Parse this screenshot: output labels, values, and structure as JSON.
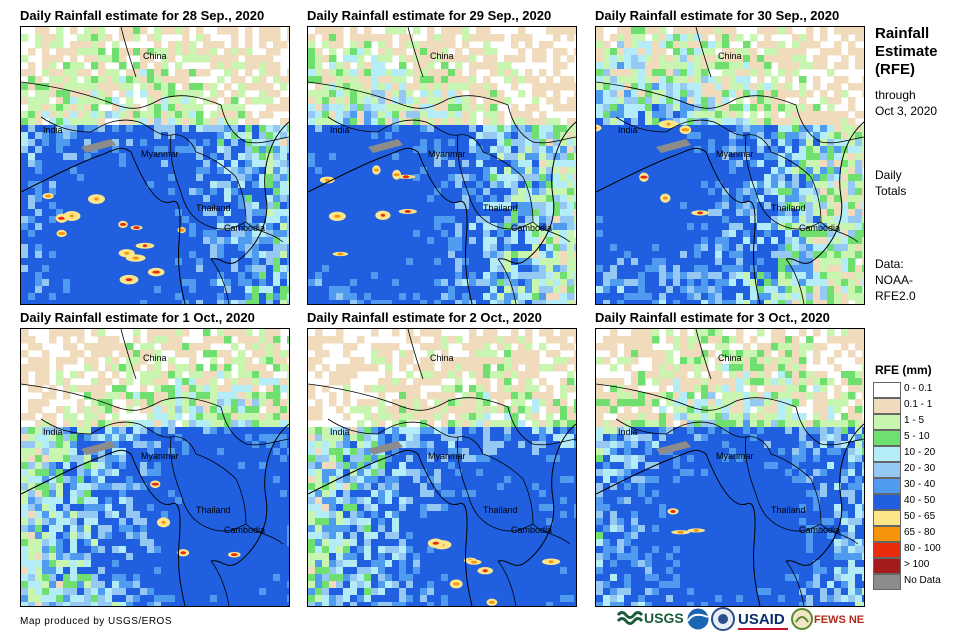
{
  "panels": [
    {
      "title": "Daily Rainfall estimate for 28 Sep., 2020",
      "seed": 11,
      "hot": 0.9,
      "center": "southwest"
    },
    {
      "title": "Daily Rainfall estimate for 29 Sep., 2020",
      "seed": 23,
      "hot": 0.6,
      "center": "west"
    },
    {
      "title": "Daily Rainfall estimate for 30 Sep., 2020",
      "seed": 37,
      "hot": 0.5,
      "center": "northwest"
    },
    {
      "title": "Daily Rainfall estimate for 1 Oct., 2020",
      "seed": 41,
      "hot": 0.3,
      "center": "east"
    },
    {
      "title": "Daily Rainfall estimate for 2 Oct., 2020",
      "seed": 53,
      "hot": 0.6,
      "center": "southeast"
    },
    {
      "title": "Daily Rainfall estimate for 3 Oct., 2020",
      "seed": 67,
      "hot": 0.2,
      "center": "south"
    }
  ],
  "map_labels": {
    "china": "China",
    "india": "India",
    "myanmar": "Myanmar",
    "thailand": "Thailand",
    "cambodia": "Cambodia"
  },
  "sidebar": {
    "title_line1": "Rainfall",
    "title_line2": "Estimate",
    "title_line3": "(RFE)",
    "through_line1": "through",
    "through_line2": "Oct 3, 2020",
    "daily_line1": "Daily",
    "daily_line2": "Totals",
    "data_line1": "Data:",
    "data_line2": "NOAA-",
    "data_line3": "RFE2.0"
  },
  "legend": {
    "title": "RFE (mm)",
    "items": [
      {
        "label": "0 - 0.1",
        "color": "#ffffff"
      },
      {
        "label": "0.1 - 1",
        "color": "#f0dcbc"
      },
      {
        "label": "1 - 5",
        "color": "#c8f5b0"
      },
      {
        "label": "5 - 10",
        "color": "#6fe06f"
      },
      {
        "label": "10 - 20",
        "color": "#b4ecf8"
      },
      {
        "label": "20 - 30",
        "color": "#96c8f4"
      },
      {
        "label": "30 - 40",
        "color": "#4f9bef"
      },
      {
        "label": "40 - 50",
        "color": "#1f5fe0"
      },
      {
        "label": "50 - 65",
        "color": "#fde58a"
      },
      {
        "label": "65 - 80",
        "color": "#f7950a"
      },
      {
        "label": "80 - 100",
        "color": "#e82c0c"
      },
      {
        "label": "> 100",
        "color": "#a31b1b"
      },
      {
        "label": "No Data",
        "color": "#8c8c8c"
      }
    ]
  },
  "credit": "Map produced by USGS/EROS",
  "logos": {
    "usgs": "USGS",
    "usaid": "USAID",
    "fewsnet": "FEWS NET"
  }
}
